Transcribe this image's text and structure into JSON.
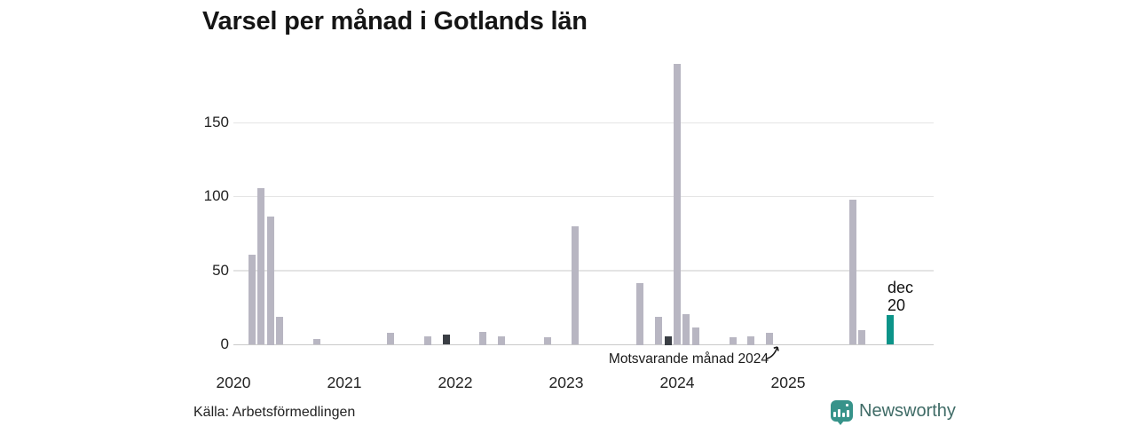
{
  "header": {
    "title": "Varsel per månad i Gotlands län"
  },
  "chart_data": {
    "type": "bar",
    "title": "Varsel per månad i Gotlands län",
    "ylabel": "",
    "xlabel": "",
    "y_ticks": [
      0,
      50,
      100,
      150
    ],
    "ylim": [
      0,
      190
    ],
    "x_tick_labels": [
      "2020",
      "2021",
      "2022",
      "2023",
      "2024",
      "2025"
    ],
    "grid": "horizontal",
    "bars": [
      {
        "label": "mar 2020",
        "month_index": 2,
        "value": 61,
        "style": "default"
      },
      {
        "label": "apr 2020",
        "month_index": 3,
        "value": 106,
        "style": "default"
      },
      {
        "label": "maj 2020",
        "month_index": 4,
        "value": 87,
        "style": "default"
      },
      {
        "label": "jun 2020",
        "month_index": 5,
        "value": 19,
        "style": "default"
      },
      {
        "label": "okt 2020",
        "month_index": 9,
        "value": 4,
        "style": "default"
      },
      {
        "label": "jun 2021",
        "month_index": 17,
        "value": 8,
        "style": "default"
      },
      {
        "label": "okt 2021",
        "month_index": 21,
        "value": 6,
        "style": "default"
      },
      {
        "label": "dec 2021",
        "month_index": 23,
        "value": 7,
        "style": "dark"
      },
      {
        "label": "apr 2022",
        "month_index": 27,
        "value": 9,
        "style": "default"
      },
      {
        "label": "jun 2022",
        "month_index": 29,
        "value": 6,
        "style": "default"
      },
      {
        "label": "nov 2022",
        "month_index": 34,
        "value": 5,
        "style": "default"
      },
      {
        "label": "feb 2023",
        "month_index": 37,
        "value": 80,
        "style": "default"
      },
      {
        "label": "sep 2023",
        "month_index": 44,
        "value": 42,
        "style": "default"
      },
      {
        "label": "nov 2023",
        "month_index": 46,
        "value": 19,
        "style": "default"
      },
      {
        "label": "dec 2023",
        "month_index": 47,
        "value": 6,
        "style": "dark"
      },
      {
        "label": "jan 2024",
        "month_index": 48,
        "value": 190,
        "style": "default"
      },
      {
        "label": "feb 2024",
        "month_index": 49,
        "value": 21,
        "style": "default"
      },
      {
        "label": "mar 2024",
        "month_index": 50,
        "value": 12,
        "style": "default"
      },
      {
        "label": "jul 2024",
        "month_index": 54,
        "value": 5,
        "style": "default"
      },
      {
        "label": "sep 2024",
        "month_index": 56,
        "value": 6,
        "style": "default"
      },
      {
        "label": "nov 2024",
        "month_index": 58,
        "value": 8,
        "style": "default"
      },
      {
        "label": "dec 2024",
        "month_index": 59,
        "value": 0,
        "style": "dark"
      },
      {
        "label": "aug 2025",
        "month_index": 67,
        "value": 98,
        "style": "default"
      },
      {
        "label": "sep 2025",
        "month_index": 68,
        "value": 10,
        "style": "default"
      },
      {
        "label": "dec 2025",
        "month_index": 71,
        "value": 20,
        "style": "teal"
      }
    ],
    "colors": {
      "bar_default": "#b8b6c2",
      "bar_dark": "#3a3e44",
      "bar_highlight": "#0c9489",
      "gridline": "#e4e4e4",
      "axisline": "#c9c9c9"
    }
  },
  "annotation": {
    "text": "Motsvarande månad 2024",
    "points_to": "dec 2024"
  },
  "peak_label": {
    "line1": "dec",
    "line2": "20"
  },
  "footer": {
    "source": "Källa: Arbetsförmedlingen",
    "brand": "Newsworthy"
  },
  "brand_colors": {
    "logo_teal": "#37938a",
    "brand_text": "#3f6b66"
  }
}
